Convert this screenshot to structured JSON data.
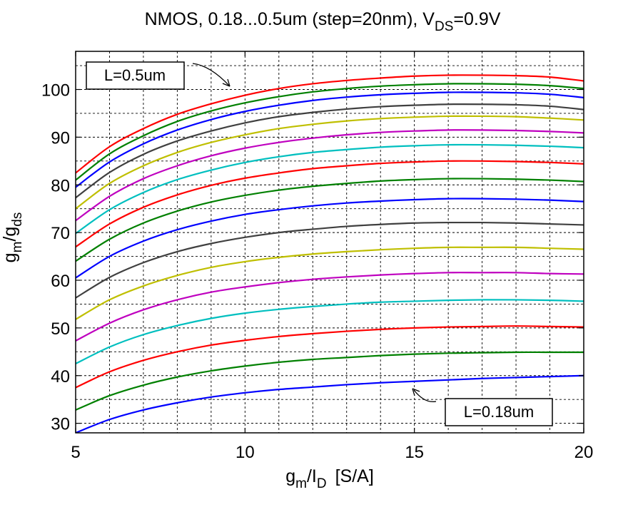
{
  "chart_data": {
    "type": "line",
    "title_parts": {
      "prefix": "NMOS, 0.18...0.5um (step=20nm), V",
      "sub": "DS",
      "suffix": "=0.9V"
    },
    "xlabel_parts": {
      "a": "g",
      "a_sub": "m",
      "b": "/I",
      "b_sub": "D",
      "unit": "[S/A]"
    },
    "ylabel_parts": {
      "a": "g",
      "a_sub": "m",
      "b": "/g",
      "b_sub": "ds"
    },
    "xlim": [
      5,
      20
    ],
    "ylim": [
      28,
      108
    ],
    "xticks": [
      5,
      10,
      15,
      20
    ],
    "yticks": [
      30,
      40,
      50,
      60,
      70,
      80,
      90,
      100
    ],
    "xtick_labels": [
      "5",
      "10",
      "15",
      "20"
    ],
    "ytick_labels": [
      "30",
      "40",
      "50",
      "60",
      "70",
      "80",
      "90",
      "100"
    ],
    "grid": true,
    "x": [
      5,
      6,
      7,
      8,
      9,
      10,
      11,
      12,
      13,
      14,
      15,
      16,
      17,
      18,
      19,
      20
    ],
    "series": [
      {
        "color": "#ff0000",
        "values": [
          82.5,
          88.0,
          91.8,
          94.8,
          97.0,
          98.8,
          100.2,
          101.2,
          101.9,
          102.4,
          102.8,
          103.0,
          103.0,
          102.9,
          102.6,
          101.8
        ]
      },
      {
        "color": "#008000",
        "values": [
          81.0,
          86.5,
          90.3,
          93.3,
          95.5,
          97.2,
          98.5,
          99.5,
          100.2,
          100.7,
          101.0,
          101.2,
          101.2,
          101.1,
          100.8,
          100.2
        ]
      },
      {
        "color": "#0000ff",
        "values": [
          79.5,
          84.8,
          88.6,
          91.5,
          93.7,
          95.4,
          96.7,
          97.7,
          98.4,
          98.9,
          99.2,
          99.4,
          99.4,
          99.3,
          99.0,
          98.3
        ]
      },
      {
        "color": "#404040",
        "values": [
          77.3,
          82.6,
          86.4,
          89.2,
          91.3,
          93.0,
          94.3,
          95.2,
          95.9,
          96.4,
          96.7,
          96.9,
          96.9,
          96.8,
          96.5,
          95.8
        ]
      },
      {
        "color": "#bfbf00",
        "values": [
          75.0,
          80.3,
          84.0,
          86.8,
          88.9,
          90.5,
          91.8,
          92.7,
          93.4,
          93.9,
          94.2,
          94.4,
          94.4,
          94.3,
          94.0,
          93.6
        ]
      },
      {
        "color": "#bf00bf",
        "values": [
          72.5,
          77.6,
          81.3,
          84.0,
          86.1,
          87.7,
          88.9,
          89.8,
          90.5,
          91.0,
          91.3,
          91.5,
          91.5,
          91.4,
          91.2,
          90.9
        ]
      },
      {
        "color": "#00bfbf",
        "values": [
          69.8,
          74.8,
          78.4,
          81.1,
          83.1,
          84.7,
          85.9,
          86.8,
          87.4,
          87.9,
          88.2,
          88.4,
          88.4,
          88.3,
          88.1,
          87.8
        ]
      },
      {
        "color": "#ff0000",
        "values": [
          67.0,
          71.8,
          75.3,
          77.9,
          79.9,
          81.4,
          82.5,
          83.4,
          84.0,
          84.5,
          84.8,
          85.0,
          85.0,
          84.9,
          84.7,
          84.4
        ]
      },
      {
        "color": "#008000",
        "values": [
          64.0,
          68.6,
          72.0,
          74.5,
          76.4,
          77.8,
          78.9,
          79.7,
          80.3,
          80.8,
          81.1,
          81.3,
          81.3,
          81.2,
          81.0,
          80.7
        ]
      },
      {
        "color": "#0000ff",
        "values": [
          60.5,
          65.0,
          68.2,
          70.6,
          72.4,
          73.8,
          74.8,
          75.6,
          76.2,
          76.6,
          76.9,
          77.1,
          77.1,
          77.0,
          76.8,
          76.5
        ]
      },
      {
        "color": "#404040",
        "values": [
          56.3,
          60.6,
          63.7,
          66.0,
          67.7,
          69.0,
          70.0,
          70.7,
          71.3,
          71.7,
          72.0,
          72.1,
          72.1,
          72.0,
          71.8,
          71.6
        ]
      },
      {
        "color": "#bfbf00",
        "values": [
          51.8,
          55.9,
          58.8,
          61.0,
          62.7,
          63.9,
          64.8,
          65.5,
          66.0,
          66.4,
          66.7,
          66.9,
          66.9,
          66.9,
          66.7,
          66.5
        ]
      },
      {
        "color": "#bf00bf",
        "values": [
          47.3,
          51.0,
          53.8,
          55.9,
          57.5,
          58.6,
          59.5,
          60.2,
          60.7,
          61.1,
          61.4,
          61.6,
          61.6,
          61.6,
          61.4,
          61.3
        ]
      },
      {
        "color": "#00bfbf",
        "values": [
          42.5,
          46.0,
          48.6,
          50.5,
          52.0,
          53.1,
          53.9,
          54.5,
          55.0,
          55.4,
          55.6,
          55.8,
          55.9,
          55.9,
          55.8,
          55.6
        ]
      },
      {
        "color": "#ff0000",
        "values": [
          37.5,
          40.8,
          43.2,
          45.0,
          46.4,
          47.4,
          48.2,
          48.8,
          49.3,
          49.7,
          50.0,
          50.2,
          50.3,
          50.4,
          50.3,
          50.2
        ]
      },
      {
        "color": "#008000",
        "values": [
          32.8,
          35.8,
          38.0,
          39.7,
          41.0,
          42.0,
          42.8,
          43.4,
          43.8,
          44.2,
          44.5,
          44.7,
          44.8,
          44.9,
          44.9,
          44.9
        ]
      },
      {
        "color": "#0000ff",
        "values": [
          28.0,
          30.8,
          32.8,
          34.3,
          35.5,
          36.4,
          37.1,
          37.6,
          38.1,
          38.5,
          38.8,
          39.1,
          39.4,
          39.6,
          39.8,
          40.0
        ]
      }
    ],
    "annotations": [
      {
        "text": "L=0.5um",
        "arrow_to": [
          9.6,
          100.3
        ]
      },
      {
        "text": "L=0.18um",
        "arrow_to": [
          15.0,
          38.8
        ]
      }
    ]
  }
}
